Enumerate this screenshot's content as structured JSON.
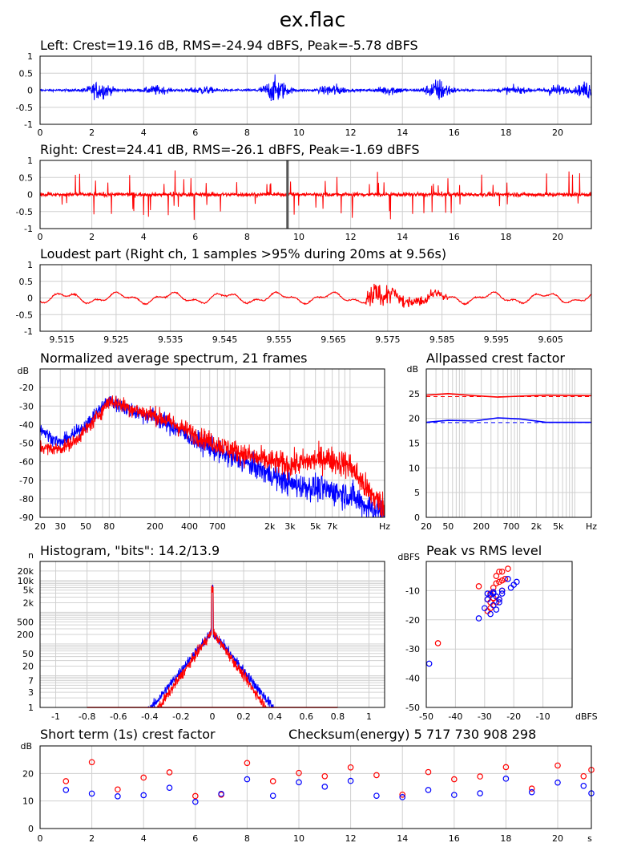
{
  "title": "ex.flac",
  "chart_data": [
    {
      "id": "left",
      "type": "line",
      "title": "Left: Crest=19.16 dB, RMS=-24.94 dBFS, Peak=-5.78 dBFS",
      "color": "#0000ff",
      "xlim": [
        0,
        21.3
      ],
      "ylim": [
        -1,
        1
      ],
      "xticks": [
        0,
        2,
        4,
        6,
        8,
        10,
        12,
        14,
        16,
        18,
        20
      ],
      "yticks": [
        1,
        0.5,
        0,
        -0.5,
        -1
      ],
      "envelope_peaks": [
        [
          2.3,
          0.3
        ],
        [
          4.5,
          0.14
        ],
        [
          6.3,
          0.12
        ],
        [
          9.1,
          0.42
        ],
        [
          11.3,
          0.2
        ],
        [
          13.5,
          0.15
        ],
        [
          15.4,
          0.38
        ],
        [
          18.3,
          0.12
        ],
        [
          19.9,
          0.18
        ],
        [
          21.2,
          0.3
        ]
      ]
    },
    {
      "id": "right",
      "type": "line",
      "title": "Right: Crest=24.41 dB, RMS=-26.1 dBFS, Peak=-1.69 dBFS",
      "color": "#ff0000",
      "xlim": [
        0,
        21.3
      ],
      "ylim": [
        -1,
        1
      ],
      "xticks": [
        0,
        2,
        4,
        6,
        8,
        10,
        12,
        14,
        16,
        18,
        20
      ],
      "yticks": [
        1,
        0.5,
        0,
        -0.5,
        -1
      ],
      "marker_x": 9.56
    },
    {
      "id": "loudest",
      "type": "line",
      "title": "Loudest part (Right ch, 1 samples >95% during 20ms at 9.56s)",
      "color": "#ff0000",
      "xlim": [
        9.511,
        9.6125
      ],
      "ylim": [
        -1,
        1
      ],
      "xticks": [
        "9.515",
        "9.525",
        "9.535",
        "9.545",
        "9.555",
        "9.565",
        "9.575",
        "9.585",
        "9.595",
        "9.605"
      ],
      "yticks": [
        1,
        0.5,
        0,
        -0.5,
        -1
      ]
    },
    {
      "id": "spectrum",
      "type": "line",
      "title": "Normalized average spectrum, 21 frames",
      "ylabel": "dB",
      "xlim": [
        20,
        20000
      ],
      "x_scale": "log",
      "ylim": [
        -90,
        -10
      ],
      "yticks": [
        -20,
        -30,
        -40,
        -50,
        -60,
        -70,
        -80,
        -90
      ],
      "xticks": [
        {
          "v": 20,
          "label": "20"
        },
        {
          "v": 30,
          "label": "30"
        },
        {
          "v": 50,
          "label": "50"
        },
        {
          "v": 80,
          "label": "80"
        },
        {
          "v": 200,
          "label": "200"
        },
        {
          "v": 400,
          "label": "400"
        },
        {
          "v": 700,
          "label": "700"
        },
        {
          "v": 2000,
          "label": "2k"
        },
        {
          "v": 3000,
          "label": "3k"
        },
        {
          "v": 5000,
          "label": "5k"
        },
        {
          "v": 7000,
          "label": "7k"
        },
        {
          "v": 20000,
          "label": "Hz"
        }
      ],
      "series": [
        {
          "color": "#0000ff",
          "points": [
            [
              20,
              -42
            ],
            [
              25,
              -47
            ],
            [
              30,
              -50
            ],
            [
              40,
              -45
            ],
            [
              55,
              -38
            ],
            [
              70,
              -30
            ],
            [
              80,
              -27
            ],
            [
              100,
              -30
            ],
            [
              120,
              -32
            ],
            [
              150,
              -34
            ],
            [
              200,
              -36
            ],
            [
              300,
              -42
            ],
            [
              500,
              -50
            ],
            [
              800,
              -56
            ],
            [
              1500,
              -63
            ],
            [
              3000,
              -72
            ],
            [
              6000,
              -75
            ],
            [
              10000,
              -78
            ],
            [
              14000,
              -84
            ],
            [
              20000,
              -88
            ]
          ]
        },
        {
          "color": "#ff0000",
          "points": [
            [
              20,
              -52
            ],
            [
              25,
              -53
            ],
            [
              30,
              -53
            ],
            [
              40,
              -49
            ],
            [
              55,
              -40
            ],
            [
              70,
              -32
            ],
            [
              80,
              -27
            ],
            [
              100,
              -29
            ],
            [
              120,
              -31
            ],
            [
              150,
              -33
            ],
            [
              200,
              -35
            ],
            [
              300,
              -40
            ],
            [
              500,
              -47
            ],
            [
              800,
              -52
            ],
            [
              1500,
              -58
            ],
            [
              3000,
              -62
            ],
            [
              6000,
              -58
            ],
            [
              10000,
              -62
            ],
            [
              14000,
              -75
            ],
            [
              20000,
              -85
            ]
          ]
        }
      ]
    },
    {
      "id": "allpassed",
      "type": "line",
      "title": "Allpassed crest factor",
      "ylabel": "dB",
      "xlim": [
        20,
        20000
      ],
      "x_scale": "log",
      "ylim": [
        0,
        30
      ],
      "yticks": [
        25,
        20,
        15,
        10,
        5,
        0
      ],
      "xticks": [
        {
          "v": 20,
          "label": "20"
        },
        {
          "v": 50,
          "label": "50"
        },
        {
          "v": 200,
          "label": "200"
        },
        {
          "v": 700,
          "label": "700"
        },
        {
          "v": 2000,
          "label": "2k"
        },
        {
          "v": 5000,
          "label": "5k"
        },
        {
          "v": 20000,
          "label": "Hz"
        }
      ],
      "series": [
        {
          "color": "#ff0000",
          "points": [
            [
              20,
              24.7
            ],
            [
              50,
              25
            ],
            [
              150,
              24.6
            ],
            [
              400,
              24.3
            ],
            [
              1000,
              24.5
            ],
            [
              3000,
              24.7
            ],
            [
              20000,
              24.6
            ]
          ],
          "ref": 24.4
        },
        {
          "color": "#0000ff",
          "points": [
            [
              20,
              19.2
            ],
            [
              50,
              19.6
            ],
            [
              150,
              19.5
            ],
            [
              400,
              20.1
            ],
            [
              1000,
              19.9
            ],
            [
              3000,
              19.2
            ],
            [
              20000,
              19.2
            ]
          ],
          "ref": 19.16
        }
      ]
    },
    {
      "id": "histogram",
      "type": "line",
      "title": "Histogram, \"bits\": 14.2/13.9",
      "xlim": [
        -1.1,
        1.1
      ],
      "xticks": [
        "-1",
        "-0.8",
        "-0.6",
        "-0.4",
        "-0.2",
        "0",
        "0.2",
        "0.4",
        "0.6",
        "0.8",
        "1"
      ],
      "yticks": [
        "n",
        "20k",
        "10k",
        "5k",
        "2k",
        "500",
        "200",
        "50",
        "20",
        "7",
        "3",
        "1"
      ]
    },
    {
      "id": "peak_vs_rms",
      "type": "scatter",
      "title": "Peak vs RMS level",
      "ylabel": "dBFS",
      "xlabel": "dBFS",
      "xlim": [
        -50,
        0
      ],
      "ylim": [
        -50,
        0
      ],
      "xticks": [
        -50,
        -40,
        -30,
        -20,
        -10
      ],
      "yticks": [
        -10,
        -20,
        -30,
        -40,
        -50
      ],
      "series": [
        {
          "color": "#ff0000",
          "points": [
            [
              -46,
              -28
            ],
            [
              -29,
              -17
            ],
            [
              -28,
              -16
            ],
            [
              -32,
              -8.5
            ],
            [
              -26,
              -5
            ],
            [
              -25,
              -3.5
            ],
            [
              -24,
              -3.5
            ],
            [
              -22,
              -2.5
            ],
            [
              -24,
              -6.5
            ],
            [
              -23,
              -6
            ],
            [
              -25,
              -7
            ],
            [
              -26,
              -7.5
            ],
            [
              -27,
              -9
            ],
            [
              -28,
              -11
            ],
            [
              -26,
              -12
            ],
            [
              -25,
              -13
            ],
            [
              -24,
              -10
            ],
            [
              -28,
              -14
            ],
            [
              -27,
              -12.5
            ],
            [
              -26,
              -14
            ],
            [
              -29,
              -13
            ]
          ]
        },
        {
          "color": "#0000ff",
          "points": [
            [
              -49,
              -35
            ],
            [
              -32,
              -19.5
            ],
            [
              -30,
              -16
            ],
            [
              -29,
              -13
            ],
            [
              -28,
              -11.5
            ],
            [
              -27,
              -10.5
            ],
            [
              -26,
              -12
            ],
            [
              -25,
              -13
            ],
            [
              -24,
              -11
            ],
            [
              -24,
              -10
            ],
            [
              -22,
              -6
            ],
            [
              -20,
              -8
            ],
            [
              -19,
              -7
            ],
            [
              -21,
              -9
            ],
            [
              -27,
              -15
            ],
            [
              -26,
              -16.5
            ],
            [
              -28,
              -18
            ],
            [
              -25,
              -14
            ],
            [
              -27,
              -11
            ],
            [
              -29,
              -11
            ]
          ]
        }
      ]
    },
    {
      "id": "short_term",
      "type": "scatter",
      "title": "Short term (1s) crest factor",
      "ylabel": "dB",
      "xlim": [
        0,
        21.3
      ],
      "ylim": [
        0,
        30
      ],
      "xticks": [
        "0",
        "2",
        "4",
        "6",
        "8",
        "10",
        "12",
        "14",
        "16",
        "18",
        "20",
        "s"
      ],
      "yticks": [
        20,
        10,
        0
      ],
      "series": [
        {
          "color": "#ff0000",
          "x": [
            1,
            2,
            3,
            4,
            5,
            6,
            7,
            8,
            9,
            10,
            11,
            12,
            13,
            14,
            15,
            16,
            17,
            18,
            19,
            20,
            21,
            22
          ],
          "values": [
            17.2,
            24.1,
            14.2,
            18.5,
            20.4,
            11.8,
            12.3,
            23.8,
            17.2,
            20.2,
            19,
            22.2,
            19.4,
            12.3,
            20.5,
            17.9,
            18.9,
            22.3,
            14.5,
            22.9,
            19,
            21.3
          ]
        },
        {
          "color": "#0000ff",
          "x": [
            1,
            2,
            3,
            4,
            5,
            6,
            7,
            8,
            9,
            10,
            11,
            12,
            13,
            14,
            15,
            16,
            17,
            18,
            19,
            20,
            21,
            22
          ],
          "values": [
            14,
            12.7,
            11.7,
            12.1,
            14.8,
            9.7,
            12.6,
            17.9,
            11.9,
            16.8,
            15.2,
            17.3,
            11.9,
            11.4,
            14,
            12.2,
            12.8,
            18.1,
            13.2,
            16.7,
            15.5,
            12.8
          ]
        }
      ]
    }
  ],
  "checksum_text": "Checksum(energy) 5 717 730 908 298"
}
